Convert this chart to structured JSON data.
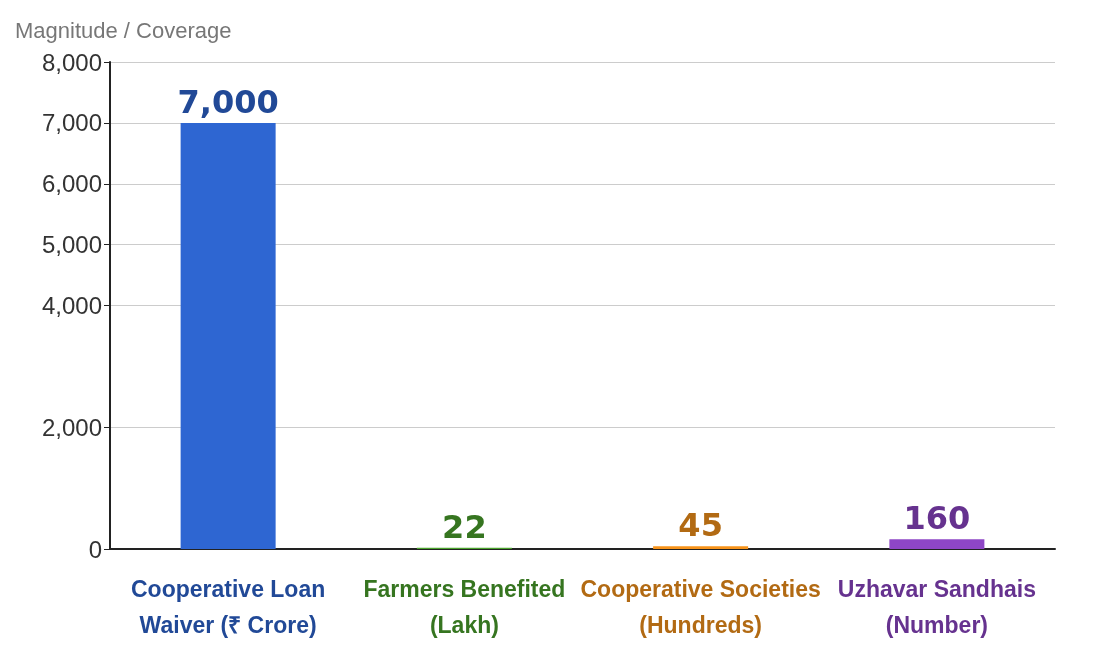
{
  "chart_data": {
    "type": "bar",
    "ylabel": "Magnitude / Coverage",
    "categories": [
      "Cooperative Loan\nWaiver (₹ Crore)",
      "Farmers Benefited\n(Lakh)",
      "Cooperative Societies\n(Hundreds)",
      "Uzhavar Sandhais\n(Number)"
    ],
    "values": [
      7000,
      22,
      45,
      160
    ],
    "value_labels": [
      "7,000",
      "22",
      "45",
      "160"
    ],
    "colors": [
      "#2e66d2",
      "#4ba32c",
      "#f7931a",
      "#8e46c6"
    ],
    "ylim": [
      0,
      8000
    ],
    "yticks": [
      0,
      {
        "value": 2000,
        "label": "2,000"
      },
      {
        "value": 4000,
        "label": "4,000"
      },
      {
        "value": 5000,
        "label": "5,000"
      },
      {
        "value": 6000,
        "label": "6,000"
      },
      {
        "value": 7000,
        "label": "7,000"
      },
      {
        "value": 8000,
        "label": "8,000"
      }
    ],
    "grid": "y"
  }
}
